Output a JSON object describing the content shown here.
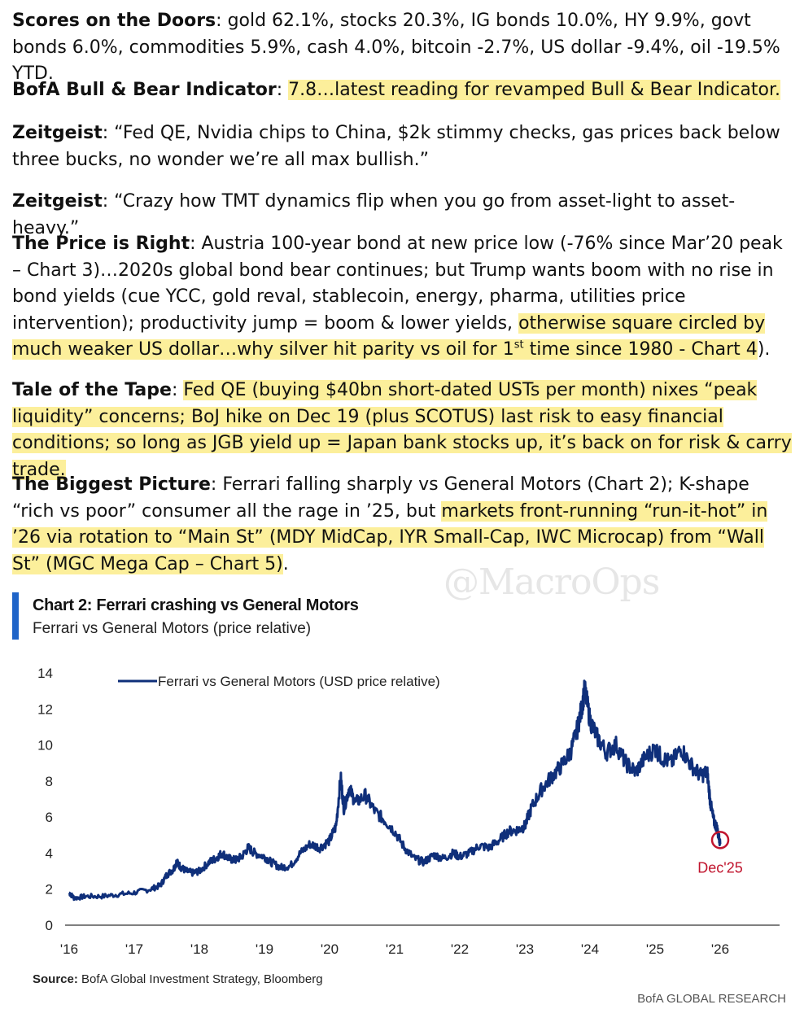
{
  "paragraphs": [
    {
      "label": "Scores on the Doors",
      "text": "gold 62.1%, stocks 20.3%, IG bonds 10.0%, HY 9.9%, govt bonds 6.0%, commodities 5.9%, cash 4.0%, bitcoin -2.7%, US dollar -9.4%, oil -19.5% YTD."
    },
    {
      "label": "BofA Bull & Bear Indicator",
      "text": "7.8…latest reading for revamped Bull & Bear Indicator."
    },
    {
      "label": "Zeitgeist",
      "text": "“Fed QE, Nvidia chips to China, $2k stimmy checks, gas prices back below three bucks, no wonder we’re all max bullish.”"
    },
    {
      "label": "Zeitgeist",
      "text": "“Crazy how TMT dynamics flip when you go from asset-light to asset-heavy.”"
    },
    {
      "label": "The Price is Right",
      "text_a": "Austria 100-year bond at new price low (-76% since Mar’20 peak – Chart 3)…2020s global bond bear continues; but Trump wants boom with no rise in bond yields (cue YCC, gold reval, stablecoin, energy, pharma, utilities price intervention); productivity jump = boom & lower yields, ",
      "text_hl_a": "otherwise square circled by much weaker US dollar…why silver hit parity vs oil for 1",
      "sup": "st",
      "text_hl_b": " time since 1980 - Chart 4",
      "text_b": ")."
    },
    {
      "label": "Tale of the Tape",
      "text": "Fed QE (buying $40bn short-dated USTs per month) nixes “peak liquidity” concerns; BoJ hike on Dec 19 (plus SCOTUS) last risk to easy financial conditions; so long as JGB yield up = Japan bank stocks up, it’s back on for risk & carry trade."
    },
    {
      "label": "The Biggest Picture",
      "text_a": "Ferrari falling sharply vs General Motors (Chart 2); K-shape “rich vs poor” consumer all the rage in ’25, but ",
      "text_hl": "markets front-running “run-it-hot” in ’26 via rotation to “Main St” (MDY MidCap, IYR Small-Cap, IWC Microcap) from “Wall St” (MGC Mega Cap – Chart 5)",
      "text_b": "."
    }
  ],
  "watermark": "@MacroOps",
  "chart": {
    "title": "Chart 2: Ferrari crashing vs General Motors",
    "subtitle": "Ferrari vs General Motors (price relative)",
    "source_label": "Source:",
    "source_text": "BofA Global Investment Strategy, Bloomberg",
    "footer": "BofA GLOBAL RESEARCH"
  },
  "chart_data": {
    "type": "line",
    "series": [
      {
        "name": "Ferrari vs General Motors (USD price relative)",
        "color": "#0f2f7a",
        "points": [
          [
            2016.0,
            1.8
          ],
          [
            2016.08,
            1.5
          ],
          [
            2016.25,
            1.6
          ],
          [
            2016.5,
            1.6
          ],
          [
            2016.75,
            1.7
          ],
          [
            2017.0,
            1.8
          ],
          [
            2017.25,
            2.0
          ],
          [
            2017.4,
            2.2
          ],
          [
            2017.5,
            2.8
          ],
          [
            2017.6,
            3.1
          ],
          [
            2017.65,
            3.5
          ],
          [
            2017.72,
            3.2
          ],
          [
            2017.8,
            3.0
          ],
          [
            2017.9,
            2.9
          ],
          [
            2018.0,
            3.0
          ],
          [
            2018.15,
            3.5
          ],
          [
            2018.25,
            3.7
          ],
          [
            2018.35,
            4.0
          ],
          [
            2018.45,
            3.7
          ],
          [
            2018.55,
            3.6
          ],
          [
            2018.65,
            3.8
          ],
          [
            2018.75,
            4.3
          ],
          [
            2018.85,
            4.0
          ],
          [
            2019.0,
            3.8
          ],
          [
            2019.1,
            3.5
          ],
          [
            2019.25,
            3.2
          ],
          [
            2019.4,
            3.3
          ],
          [
            2019.55,
            4.0
          ],
          [
            2019.7,
            4.5
          ],
          [
            2019.85,
            4.3
          ],
          [
            2020.0,
            4.7
          ],
          [
            2020.1,
            5.5
          ],
          [
            2020.17,
            8.2
          ],
          [
            2020.22,
            6.5
          ],
          [
            2020.3,
            7.6
          ],
          [
            2020.4,
            6.8
          ],
          [
            2020.55,
            7.2
          ],
          [
            2020.7,
            6.3
          ],
          [
            2020.85,
            5.8
          ],
          [
            2021.0,
            5.2
          ],
          [
            2021.15,
            4.3
          ],
          [
            2021.3,
            3.7
          ],
          [
            2021.45,
            3.5
          ],
          [
            2021.6,
            3.9
          ],
          [
            2021.75,
            3.7
          ],
          [
            2021.9,
            4.0
          ],
          [
            2022.0,
            3.8
          ],
          [
            2022.15,
            4.0
          ],
          [
            2022.3,
            4.4
          ],
          [
            2022.45,
            4.3
          ],
          [
            2022.6,
            4.7
          ],
          [
            2022.75,
            5.2
          ],
          [
            2022.9,
            5.3
          ],
          [
            2023.0,
            5.5
          ],
          [
            2023.1,
            6.5
          ],
          [
            2023.25,
            7.5
          ],
          [
            2023.4,
            8.2
          ],
          [
            2023.55,
            8.8
          ],
          [
            2023.7,
            9.6
          ],
          [
            2023.8,
            10.8
          ],
          [
            2023.87,
            12.0
          ],
          [
            2023.92,
            13.1
          ],
          [
            2024.0,
            11.4
          ],
          [
            2024.1,
            10.5
          ],
          [
            2024.25,
            9.6
          ],
          [
            2024.4,
            10.0
          ],
          [
            2024.55,
            9.0
          ],
          [
            2024.7,
            8.5
          ],
          [
            2024.85,
            9.3
          ],
          [
            2025.0,
            9.8
          ],
          [
            2025.1,
            9.3
          ],
          [
            2025.25,
            9.0
          ],
          [
            2025.4,
            9.8
          ],
          [
            2025.55,
            8.9
          ],
          [
            2025.7,
            8.3
          ],
          [
            2025.8,
            8.5
          ],
          [
            2025.85,
            6.8
          ],
          [
            2025.9,
            5.8
          ],
          [
            2025.95,
            5.4
          ],
          [
            2026.0,
            4.5
          ]
        ]
      }
    ],
    "xlim": [
      2016,
      2027
    ],
    "ylim": [
      0,
      14
    ],
    "x_ticks": [
      2016,
      2017,
      2018,
      2019,
      2020,
      2021,
      2022,
      2023,
      2024,
      2025,
      2026
    ],
    "x_tick_labels": [
      "'16",
      "'17",
      "'18",
      "'19",
      "'20",
      "'21",
      "'22",
      "'23",
      "'24",
      "'25",
      "'26"
    ],
    "y_ticks": [
      0,
      2,
      4,
      6,
      8,
      10,
      12,
      14
    ],
    "annotation": {
      "x": 2026.0,
      "y": 4.5,
      "label": "Dec'25",
      "color": "#c0142d"
    },
    "legend_position": "top-left",
    "grid": false
  }
}
